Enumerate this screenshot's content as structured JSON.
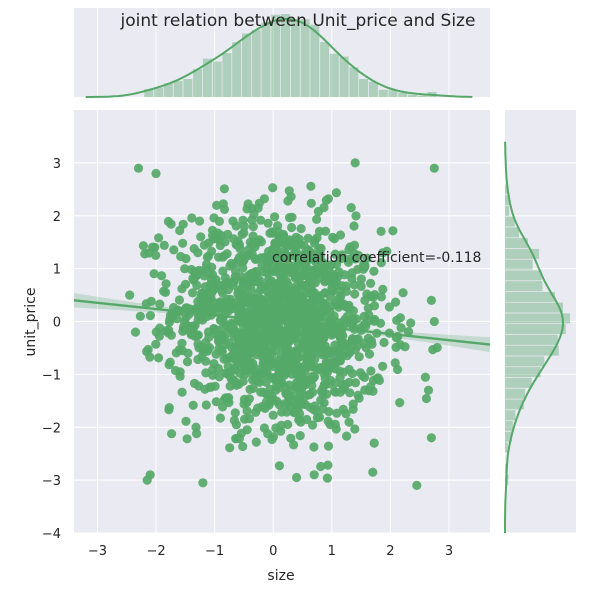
{
  "chart_data": {
    "type": "scatter",
    "title": "joint relation between Unit_price and Size",
    "xlabel": "size",
    "ylabel": "unit_price",
    "xlim": [
      -3.4,
      3.7
    ],
    "ylim": [
      -4.0,
      4.0
    ],
    "xticks": [
      -3,
      -2,
      -1,
      0,
      1,
      2,
      3
    ],
    "yticks": [
      -4,
      -3,
      -2,
      -1,
      0,
      1,
      2,
      3
    ],
    "grid": true,
    "annotation": "correlation coefficient=-0.118",
    "correlation_coefficient": -0.118,
    "regression": {
      "slope": -0.118,
      "intercept": 0.0,
      "ci_halfwidth": 0.08
    },
    "n_points": 1500,
    "x_distribution": {
      "type": "normal",
      "mean": 0.1,
      "sd": 0.9
    },
    "y_distribution": {
      "type": "normal",
      "mean": 0.0,
      "sd": 1.0
    },
    "notable_points": [
      {
        "x": -2.3,
        "y": 2.9
      },
      {
        "x": -2.0,
        "y": 2.8
      },
      {
        "x": 1.4,
        "y": 3.0
      },
      {
        "x": 2.75,
        "y": 2.9
      },
      {
        "x": -2.1,
        "y": -2.9
      },
      {
        "x": -2.15,
        "y": -3.0
      },
      {
        "x": -1.2,
        "y": -3.05
      },
      {
        "x": 2.45,
        "y": -3.1
      },
      {
        "x": 0.4,
        "y": -2.95
      },
      {
        "x": 0.7,
        "y": -2.9
      },
      {
        "x": 1.7,
        "y": -2.85
      },
      {
        "x": 2.75,
        "y": 0.0
      },
      {
        "x": 2.7,
        "y": 0.4
      },
      {
        "x": -2.45,
        "y": 0.5
      },
      {
        "x": 2.7,
        "y": -2.2
      },
      {
        "x": 2.65,
        "y": -1.3
      },
      {
        "x": -2.35,
        "y": -0.2
      }
    ],
    "x_histogram": {
      "bins": 30,
      "range": [
        -2.2,
        2.8
      ]
    },
    "y_histogram": {
      "bins": 30,
      "range": [
        -3.1,
        3.0
      ]
    },
    "colors": {
      "points": "#55a868",
      "hist": "#55a868",
      "background": "#eaeaf2",
      "grid": "#ffffff"
    }
  }
}
